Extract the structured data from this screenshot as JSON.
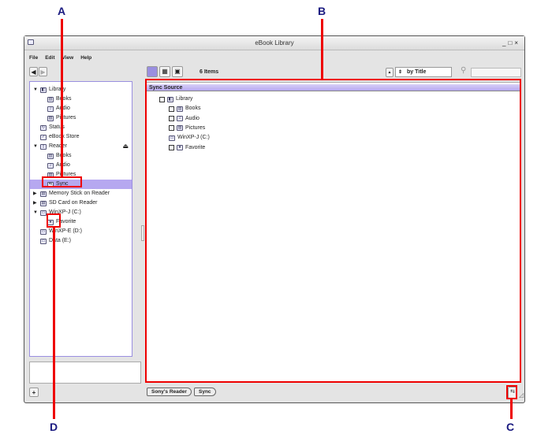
{
  "window": {
    "title": "eBook Library",
    "controls": [
      "_",
      "□",
      "×"
    ]
  },
  "menu": [
    "File",
    "Edit",
    "View",
    "Help"
  ],
  "toolbar": {
    "item_count": "6 Items",
    "sort_label": "by Title"
  },
  "tree": [
    {
      "label": "Library",
      "indent": 0,
      "arrow": "▼",
      "icon": "library-icon"
    },
    {
      "label": "Books",
      "indent": 1,
      "icon": "book-icon"
    },
    {
      "label": "Audio",
      "indent": 1,
      "icon": "music-note-icon"
    },
    {
      "label": "Pictures",
      "indent": 1,
      "icon": "picture-icon"
    },
    {
      "label": "Status",
      "indent": 0,
      "icon": "status-icon"
    },
    {
      "label": "eBook Store",
      "indent": 0,
      "icon": "store-icon"
    },
    {
      "label": "Reader",
      "indent": 0,
      "arrow": "▼",
      "icon": "reader-device-icon"
    },
    {
      "label": "Books",
      "indent": 1,
      "icon": "book-icon"
    },
    {
      "label": "Audio",
      "indent": 1,
      "icon": "music-note-icon"
    },
    {
      "label": "Pictures",
      "indent": 1,
      "icon": "picture-icon"
    },
    {
      "label": "Sync",
      "indent": 1,
      "icon": "sync-icon",
      "selected": true
    },
    {
      "label": "Memory Stick on Reader",
      "indent": 0,
      "arrow": "▶",
      "icon": "memory-stick-icon"
    },
    {
      "label": "SD Card on Reader",
      "indent": 0,
      "arrow": "▶",
      "icon": "sd-card-icon"
    },
    {
      "label": "WinXP-J (C:)",
      "indent": 0,
      "arrow": "▼",
      "icon": "drive-icon"
    },
    {
      "label": "Favorite",
      "indent": 1,
      "icon": "favorite-folder-icon"
    },
    {
      "label": "WinXP-E (D:)",
      "indent": 0,
      "icon": "drive-icon"
    },
    {
      "label": "Data (E:)",
      "indent": 0,
      "icon": "drive-icon"
    }
  ],
  "sync_source": {
    "header": "Sync Source",
    "items": [
      {
        "label": "Library",
        "indent": 0,
        "checkbox": true,
        "icon": "library-icon"
      },
      {
        "label": "Books",
        "indent": 1,
        "checkbox": true,
        "icon": "book-icon"
      },
      {
        "label": "Audio",
        "indent": 1,
        "checkbox": true,
        "icon": "music-note-icon"
      },
      {
        "label": "Pictures",
        "indent": 1,
        "checkbox": true,
        "icon": "picture-icon"
      },
      {
        "label": "WinXP-J (C:)",
        "indent": 1,
        "checkbox": false,
        "icon": "drive-icon"
      },
      {
        "label": "Favorite",
        "indent": 1,
        "checkbox": true,
        "icon": "favorite-folder-icon"
      }
    ]
  },
  "breadcrumb": [
    "Sony's Reader",
    "Sync"
  ],
  "callouts": {
    "a": "A",
    "b": "B",
    "c": "C",
    "d": "D"
  },
  "colors": {
    "selection": "#b6a8f0",
    "panel_border": "#9a8fe0",
    "callout": "#e00000",
    "label": "#1a1a80"
  }
}
